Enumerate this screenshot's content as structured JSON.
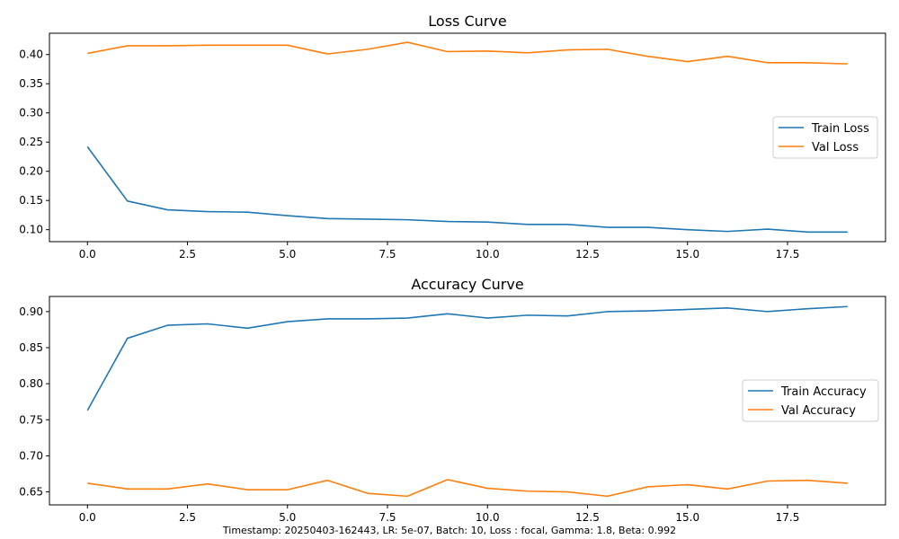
{
  "footer": "Timestamp: 20250403-162443, LR: 5e-07, Batch: 10, Loss : focal, Gamma: 1.8, Beta: 0.992",
  "chart_data": [
    {
      "type": "line",
      "title": "Loss Curve",
      "xlabel": "",
      "ylabel": "",
      "x": [
        0,
        1,
        2,
        3,
        4,
        5,
        6,
        7,
        8,
        9,
        10,
        11,
        12,
        13,
        14,
        15,
        16,
        17,
        18,
        19
      ],
      "xlim": [
        -0.95,
        19.95
      ],
      "ylim": [
        0.0795,
        0.4365
      ],
      "xticks": [
        0.0,
        2.5,
        5.0,
        7.5,
        10.0,
        12.5,
        15.0,
        17.5
      ],
      "xtick_labels": [
        "0.0",
        "2.5",
        "5.0",
        "7.5",
        "10.0",
        "12.5",
        "15.0",
        "17.5"
      ],
      "yticks": [
        0.1,
        0.15,
        0.2,
        0.25,
        0.3,
        0.35,
        0.4
      ],
      "ytick_labels": [
        "0.10",
        "0.15",
        "0.20",
        "0.25",
        "0.30",
        "0.35",
        "0.40"
      ],
      "grid": false,
      "legend": "center-right",
      "series": [
        {
          "name": "Train Loss",
          "color": "#1f77b4",
          "values": [
            0.242,
            0.149,
            0.134,
            0.131,
            0.13,
            0.124,
            0.119,
            0.118,
            0.117,
            0.114,
            0.113,
            0.109,
            0.109,
            0.104,
            0.104,
            0.1,
            0.097,
            0.101,
            0.096,
            0.096
          ]
        },
        {
          "name": "Val Loss",
          "color": "#ff7f0e",
          "values": [
            0.402,
            0.415,
            0.415,
            0.416,
            0.416,
            0.416,
            0.401,
            0.409,
            0.421,
            0.405,
            0.406,
            0.403,
            0.408,
            0.409,
            0.397,
            0.388,
            0.397,
            0.386,
            0.386,
            0.384
          ]
        }
      ]
    },
    {
      "type": "line",
      "title": "Accuracy Curve",
      "xlabel": "",
      "ylabel": "",
      "x": [
        0,
        1,
        2,
        3,
        4,
        5,
        6,
        7,
        8,
        9,
        10,
        11,
        12,
        13,
        14,
        15,
        16,
        17,
        18,
        19
      ],
      "xlim": [
        -0.95,
        19.95
      ],
      "ylim": [
        0.632,
        0.921
      ],
      "xticks": [
        0.0,
        2.5,
        5.0,
        7.5,
        10.0,
        12.5,
        15.0,
        17.5
      ],
      "xtick_labels": [
        "0.0",
        "2.5",
        "5.0",
        "7.5",
        "10.0",
        "12.5",
        "15.0",
        "17.5"
      ],
      "yticks": [
        0.65,
        0.7,
        0.75,
        0.8,
        0.85,
        0.9
      ],
      "ytick_labels": [
        "0.65",
        "0.70",
        "0.75",
        "0.80",
        "0.85",
        "0.90"
      ],
      "grid": false,
      "legend": "center-right",
      "series": [
        {
          "name": "Train Accuracy",
          "color": "#1f77b4",
          "values": [
            0.763,
            0.863,
            0.881,
            0.883,
            0.877,
            0.886,
            0.89,
            0.89,
            0.891,
            0.897,
            0.891,
            0.895,
            0.894,
            0.9,
            0.901,
            0.903,
            0.905,
            0.9,
            0.904,
            0.907
          ]
        },
        {
          "name": "Val Accuracy",
          "color": "#ff7f0e",
          "values": [
            0.662,
            0.654,
            0.654,
            0.661,
            0.653,
            0.653,
            0.666,
            0.648,
            0.644,
            0.667,
            0.655,
            0.651,
            0.65,
            0.644,
            0.657,
            0.66,
            0.654,
            0.665,
            0.666,
            0.662
          ]
        }
      ]
    }
  ]
}
